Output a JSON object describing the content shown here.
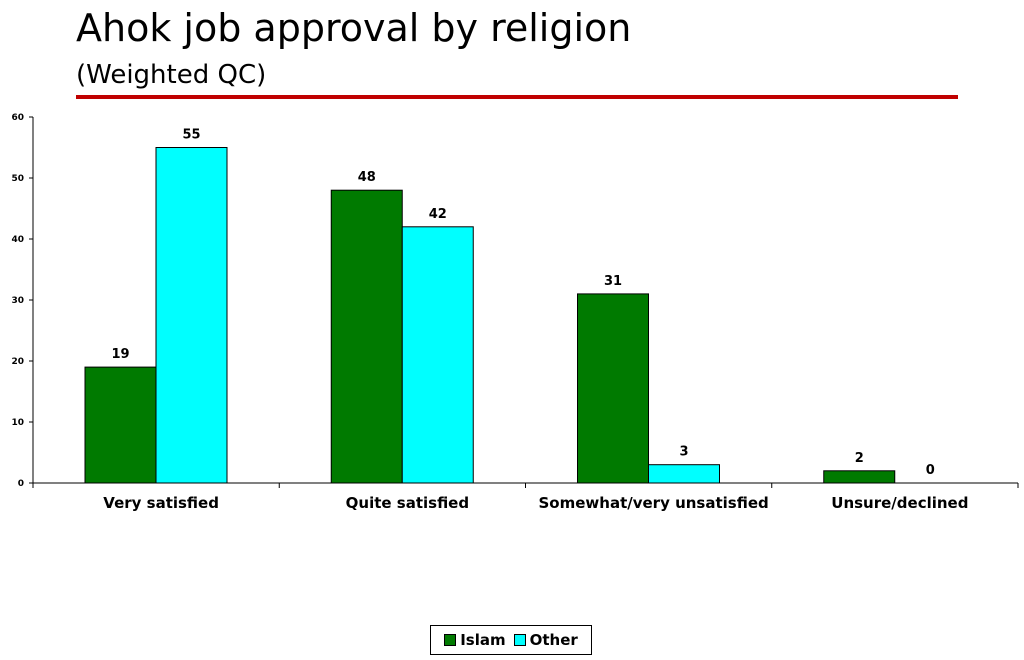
{
  "title": "Ahok job approval by religion",
  "subtitle": "(Weighted QC)",
  "colors": {
    "title_rule": "#c00000",
    "axis": "#000000"
  },
  "chart_data": {
    "type": "bar",
    "title": "",
    "xlabel": "",
    "ylabel": "",
    "ylim": [
      0,
      60
    ],
    "yticks": [
      0,
      10,
      20,
      30,
      40,
      50,
      60
    ],
    "grid": false,
    "legend_position": "bottom-center",
    "categories": [
      "Very satisfied",
      "Quite satisfied",
      "Somewhat/very unsatisfied",
      "Unsure/declined"
    ],
    "series": [
      {
        "name": "Islam",
        "color": "#007a00",
        "values": [
          19,
          48,
          31,
          2
        ],
        "labels": [
          "19",
          "48",
          "31",
          "2"
        ]
      },
      {
        "name": "Other",
        "color": "#00ffff",
        "values": [
          55,
          42,
          3,
          0
        ],
        "labels": [
          "55",
          "42",
          "3",
          "0"
        ]
      }
    ]
  }
}
